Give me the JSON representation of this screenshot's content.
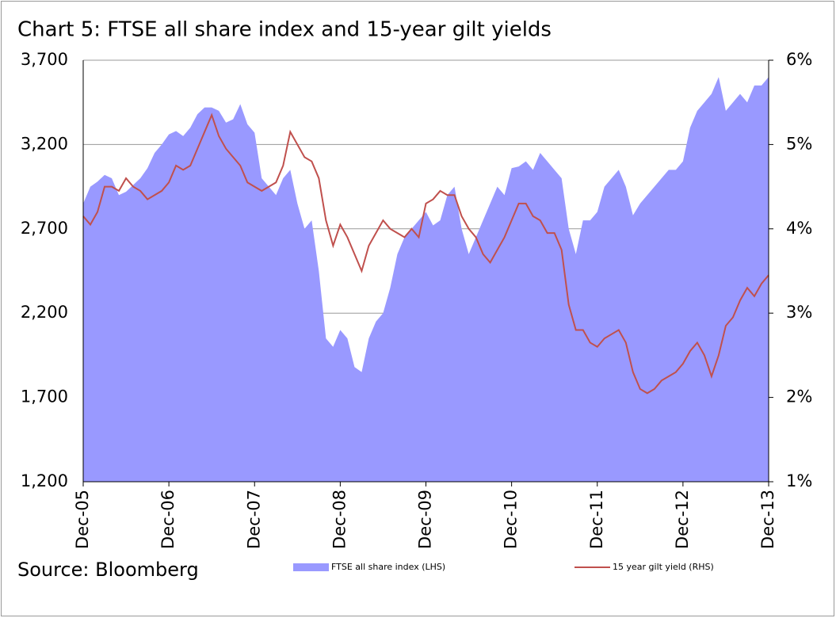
{
  "chart_data": {
    "type": "area",
    "title": "Chart 5: FTSE all share index and 15-year gilt yields",
    "source": "Source: Bloomberg",
    "categories": [
      "Dec-05",
      null,
      null,
      null,
      null,
      null,
      null,
      null,
      null,
      null,
      null,
      null,
      "Dec-06",
      null,
      null,
      null,
      null,
      null,
      null,
      null,
      null,
      null,
      null,
      null,
      "Dec-07",
      null,
      null,
      null,
      null,
      null,
      null,
      null,
      null,
      null,
      null,
      null,
      "Dec-08",
      null,
      null,
      null,
      null,
      null,
      null,
      null,
      null,
      null,
      null,
      null,
      "Dec-09",
      null,
      null,
      null,
      null,
      null,
      null,
      null,
      null,
      null,
      null,
      null,
      "Dec-10",
      null,
      null,
      null,
      null,
      null,
      null,
      null,
      null,
      null,
      null,
      null,
      "Dec-11",
      null,
      null,
      null,
      null,
      null,
      null,
      null,
      null,
      null,
      null,
      null,
      "Dec-12",
      null,
      null,
      null,
      null,
      null,
      null,
      null,
      null,
      null,
      null,
      null,
      "Dec-13"
    ],
    "series": [
      {
        "name": "FTSE all share index (LHS)",
        "type": "area",
        "color": "#9999ff",
        "axis": "y",
        "values": [
          2850,
          2950,
          2980,
          3020,
          3000,
          2900,
          2920,
          2960,
          3000,
          3060,
          3150,
          3200,
          3260,
          3280,
          3250,
          3300,
          3380,
          3420,
          3420,
          3400,
          3330,
          3350,
          3440,
          3320,
          3270,
          3000,
          2950,
          2900,
          3000,
          3050,
          2850,
          2700,
          2750,
          2450,
          2050,
          2000,
          2100,
          2050,
          1880,
          1850,
          2050,
          2150,
          2200,
          2350,
          2550,
          2650,
          2700,
          2750,
          2800,
          2720,
          2750,
          2900,
          2950,
          2700,
          2550,
          2650,
          2750,
          2850,
          2950,
          2900,
          3060,
          3070,
          3100,
          3050,
          3150,
          3100,
          3050,
          3000,
          2700,
          2550,
          2750,
          2750,
          2800,
          2950,
          3000,
          3050,
          2950,
          2780,
          2850,
          2900,
          2950,
          3000,
          3050,
          3050,
          3100,
          3300,
          3400,
          3450,
          3500,
          3600,
          3400,
          3450,
          3500,
          3450,
          3550,
          3550,
          3600
        ]
      },
      {
        "name": "15 year gilt yield (RHS)",
        "type": "line",
        "color": "#c0504d",
        "axis": "y2",
        "values": [
          4.15,
          4.05,
          4.2,
          4.5,
          4.5,
          4.45,
          4.6,
          4.5,
          4.45,
          4.35,
          4.4,
          4.45,
          4.55,
          4.75,
          4.7,
          4.75,
          4.95,
          5.15,
          5.35,
          5.1,
          4.95,
          4.85,
          4.75,
          4.55,
          4.5,
          4.45,
          4.5,
          4.55,
          4.75,
          5.15,
          5.0,
          4.85,
          4.8,
          4.6,
          4.1,
          3.8,
          4.05,
          3.9,
          3.7,
          3.5,
          3.8,
          3.95,
          4.1,
          4.0,
          3.95,
          3.9,
          4.0,
          3.9,
          4.3,
          4.35,
          4.45,
          4.4,
          4.4,
          4.15,
          4.0,
          3.9,
          3.7,
          3.6,
          3.75,
          3.9,
          4.1,
          4.3,
          4.3,
          4.15,
          4.1,
          3.95,
          3.95,
          3.75,
          3.1,
          2.8,
          2.8,
          2.65,
          2.6,
          2.7,
          2.75,
          2.8,
          2.65,
          2.3,
          2.1,
          2.05,
          2.1,
          2.2,
          2.25,
          2.3,
          2.4,
          2.55,
          2.65,
          2.5,
          2.25,
          2.5,
          2.85,
          2.95,
          3.15,
          3.3,
          3.2,
          3.35,
          3.45
        ]
      }
    ],
    "ylim": [
      1200,
      3700
    ],
    "yticks": [
      {
        "value": 1200,
        "label": "1,200"
      },
      {
        "value": 1700,
        "label": "1,700"
      },
      {
        "value": 2200,
        "label": "2,200"
      },
      {
        "value": 2700,
        "label": "2,700"
      },
      {
        "value": 3200,
        "label": "3,200"
      },
      {
        "value": 3700,
        "label": "3,700"
      }
    ],
    "y2lim": [
      1,
      6
    ],
    "y2ticks": [
      {
        "value": 1,
        "label": "1%"
      },
      {
        "value": 2,
        "label": "2%"
      },
      {
        "value": 3,
        "label": "3%"
      },
      {
        "value": 4,
        "label": "4%"
      },
      {
        "value": 5,
        "label": "5%"
      },
      {
        "value": 6,
        "label": "6%"
      }
    ],
    "grid": true,
    "legend": "bottom"
  }
}
